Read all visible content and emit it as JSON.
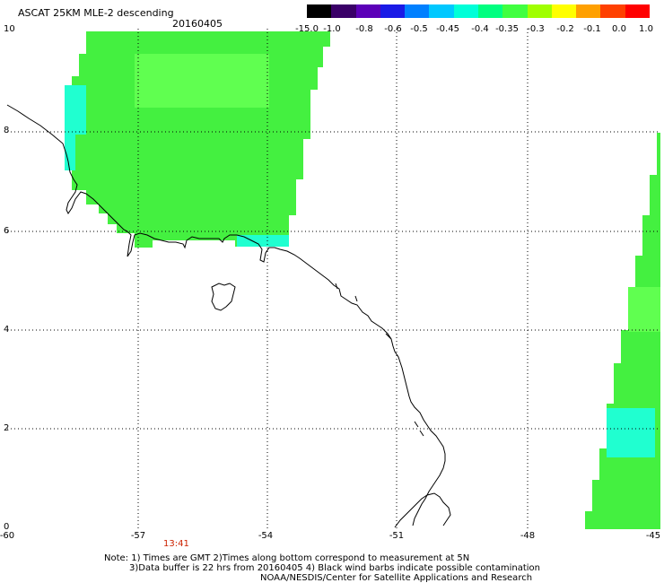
{
  "header": {
    "title": "ASCAT 25KM MLE-2 descending",
    "date": "20160405"
  },
  "colorbar": {
    "labels": [
      "-15.0",
      "-1.0",
      "-0.8",
      "-0.6",
      "-0.5",
      "-0.45",
      "-0.4",
      "-0.35",
      "-0.3",
      "-0.2",
      "-0.1",
      "0.0",
      "1.0"
    ],
    "colors": [
      "#000000",
      "#3a0068",
      "#5c00b8",
      "#1a1ae6",
      "#0080ff",
      "#00c8ff",
      "#00ffd8",
      "#00ff80",
      "#40ff40",
      "#a0ff00",
      "#ffff00",
      "#ffa000",
      "#ff4000",
      "#ff0000"
    ]
  },
  "axes": {
    "x_ticks": [
      "-60",
      "-57",
      "-54",
      "-51",
      "-48",
      "-45"
    ],
    "y_ticks": [
      "0",
      "2",
      "4",
      "6",
      "8",
      "10"
    ]
  },
  "time_label": "13:41",
  "notes": {
    "line1": "Note: 1) Times are GMT 2)Times along bottom correspond to measurement at 5N",
    "line2": "3)Data buffer is 22 hrs from 20160405 4) Black wind barbs indicate possible contamination",
    "line3": "NOAA/NESDIS/Center for Satellite Applications and Research"
  },
  "palette": {
    "data_green": "#44f040",
    "data_green_light": "#60ff50",
    "data_cyan": "#20ffd0",
    "time_red": "#cc2200"
  }
}
